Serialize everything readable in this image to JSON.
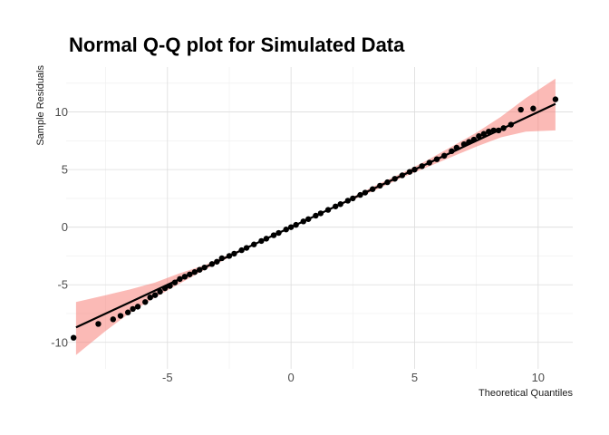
{
  "chart_data": {
    "type": "scatter",
    "title": "Normal Q-Q plot for Simulated Data",
    "xlabel": "Theoretical Quantiles",
    "ylabel": "Sample Residuals",
    "xlim": [
      -9.1,
      11.4
    ],
    "ylim": [
      -12.3,
      13.9
    ],
    "x_ticks": [
      -5,
      0,
      5,
      10
    ],
    "y_ticks": [
      -10,
      -5,
      0,
      5,
      10
    ],
    "grid": true,
    "band_color": "#f8766d",
    "point_color": "#000000",
    "line_color": "#000000",
    "reference_line": {
      "slope": 1.0,
      "intercept": 0.0
    },
    "band": {
      "x": [
        -8.7,
        -7.5,
        -6.5,
        -5.5,
        -4.5,
        -3.5,
        -2.0,
        0.0,
        2.0,
        3.5,
        4.5,
        5.5,
        6.5,
        7.5,
        8.5,
        9.5,
        10.7
      ],
      "lower": [
        -11.1,
        -9.0,
        -7.4,
        -6.1,
        -4.9,
        -3.7,
        -2.1,
        0.0,
        1.9,
        3.3,
        4.3,
        5.2,
        6.1,
        7.0,
        7.8,
        8.3,
        8.4
      ],
      "upper": [
        -6.5,
        -5.9,
        -5.4,
        -4.8,
        -4.0,
        -3.3,
        -1.9,
        0.0,
        2.1,
        3.7,
        4.7,
        5.8,
        7.0,
        8.2,
        9.6,
        11.2,
        12.9
      ]
    },
    "points": {
      "x": [
        -8.8,
        -7.8,
        -7.2,
        -6.9,
        -6.6,
        -6.4,
        -6.2,
        -5.9,
        -5.7,
        -5.5,
        -5.3,
        -5.1,
        -4.9,
        -4.7,
        -4.5,
        -4.3,
        -4.1,
        -3.9,
        -3.7,
        -3.5,
        -3.2,
        -3.0,
        -2.8,
        -2.5,
        -2.3,
        -2.0,
        -1.8,
        -1.5,
        -1.2,
        -1.0,
        -0.7,
        -0.5,
        -0.2,
        0.0,
        0.2,
        0.5,
        0.7,
        1.0,
        1.2,
        1.5,
        1.8,
        2.0,
        2.3,
        2.5,
        2.8,
        3.0,
        3.3,
        3.6,
        3.9,
        4.2,
        4.5,
        4.8,
        5.0,
        5.3,
        5.6,
        5.9,
        6.2,
        6.5,
        6.7,
        7.0,
        7.2,
        7.4,
        7.6,
        7.8,
        8.0,
        8.2,
        8.4,
        8.6,
        8.9,
        9.3,
        9.8,
        10.7
      ],
      "y": [
        -9.6,
        -8.4,
        -8.0,
        -7.7,
        -7.4,
        -7.1,
        -6.9,
        -6.5,
        -6.1,
        -5.9,
        -5.6,
        -5.3,
        -5.1,
        -4.8,
        -4.5,
        -4.3,
        -4.1,
        -3.9,
        -3.7,
        -3.5,
        -3.2,
        -3.0,
        -2.7,
        -2.5,
        -2.3,
        -2.0,
        -1.8,
        -1.5,
        -1.2,
        -1.0,
        -0.7,
        -0.5,
        -0.2,
        0.0,
        0.2,
        0.5,
        0.7,
        1.0,
        1.2,
        1.5,
        1.8,
        2.0,
        2.3,
        2.5,
        2.8,
        3.0,
        3.3,
        3.6,
        3.9,
        4.2,
        4.5,
        4.8,
        5.0,
        5.3,
        5.6,
        5.9,
        6.2,
        6.6,
        6.9,
        7.2,
        7.4,
        7.6,
        7.9,
        8.1,
        8.3,
        8.4,
        8.4,
        8.6,
        8.9,
        10.2,
        10.3,
        11.1
      ]
    }
  }
}
